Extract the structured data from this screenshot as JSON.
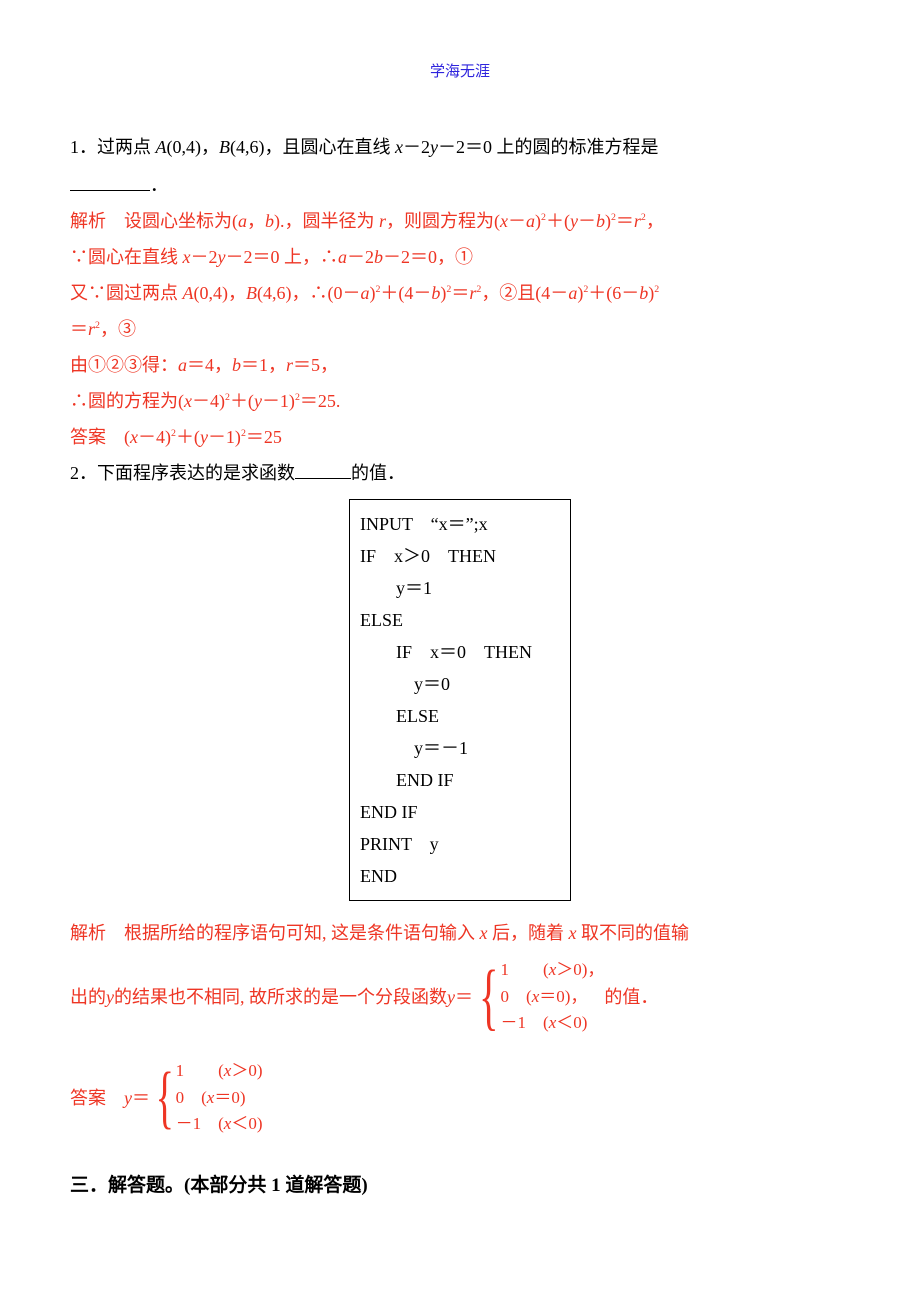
{
  "colors": {
    "text": "#000000",
    "accent_blue": "#2e24dd",
    "answer_red": "#ee3524",
    "background": "#ffffff",
    "border": "#000000"
  },
  "typography": {
    "body_font": "Microsoft YaHei / SimSun",
    "body_size_pt": 14,
    "header_size_pt": 11,
    "code_font": "Times New Roman",
    "line_height": 2.0
  },
  "header": {
    "text": "学海无涯"
  },
  "q1": {
    "line1_a": "1．过两点 ",
    "line1_b": "(0,4)，",
    "line1_c": "(4,6)，且圆心在直线 ",
    "line1_d": "－2",
    "line1_e": "－2＝0 上的圆的标准方程是",
    "blank_suffix": "．",
    "sol_label": "解析",
    "sol1_a": "　设圆心坐标为(",
    "sol1_b": "，",
    "sol1_c": ").，圆半径为 ",
    "sol1_d": "，则圆方程为(",
    "sol1_e": "－",
    "sol1_f": ")",
    "sol1_g": "＋(",
    "sol1_h": "－",
    "sol1_i": ")",
    "sol1_j": "＝",
    "sol1_k": "，",
    "sol2_a": "∵圆心在直线 ",
    "sol2_b": "－2",
    "sol2_c": "－2＝0 上，∴",
    "sol2_d": "－2",
    "sol2_e": "－2＝0，①",
    "sol3_a": "又∵圆过两点 ",
    "sol3_b": "(0,4)，",
    "sol3_c": "(4,6)，∴(0－",
    "sol3_d": ")",
    "sol3_e": "＋(4－",
    "sol3_f": ")",
    "sol3_g": "＝",
    "sol3_h": "，②且(4－",
    "sol3_i": ")",
    "sol3_j": "＋(6－",
    "sol3_k": ")",
    "sol4_a": "＝",
    "sol4_b": "，③",
    "sol5_a": "由①②③得：",
    "sol5_b": "＝4，",
    "sol5_c": "＝1，",
    "sol5_d": "＝5，",
    "sol6_a": "∴圆的方程为(",
    "sol6_b": "－4)",
    "sol6_c": "＋(",
    "sol6_d": "－1)",
    "sol6_e": "＝25.",
    "ans_label": "答案",
    "ans_a": "　(",
    "ans_b": "－4)",
    "ans_c": "＋(",
    "ans_d": "－1)",
    "ans_e": "＝25"
  },
  "q2": {
    "line1_a": "2．下面程序表达的是求函数",
    "line1_b": "的值．",
    "code": {
      "l1": "INPUT　“x＝”;x",
      "l2": "IF　x＞0　THEN",
      "l3": "　　y＝1",
      "l4": "ELSE",
      "l5": "　　IF　x＝0　THEN",
      "l6": "　　　y＝0",
      "l7": "　　ELSE",
      "l8": "　　　y＝－1",
      "l9": "　　END IF",
      "l10": "END IF",
      "l11": "PRINT　y",
      "l12": "END"
    },
    "sol_label": "解析",
    "sol1": "　根据所给的程序语句可知, 这是条件语句输入",
    "sol1b": "后，随着",
    "sol1c": "取不同的值输",
    "sol2a": "出的",
    "sol2b": "的结果也不相同, 故所求的是一个分段函数",
    "sol2c": "＝",
    "sol2_tail": "的值．",
    "pw1": {
      "l1a": "1　　(",
      "l1b": "＞0)，",
      "l2a": "0　(",
      "l2b": "＝0)，",
      "l3a": "－1　(",
      "l3b": "＜0)"
    },
    "ans_label": "答案",
    "ans_pre": "　",
    "ans_y": "＝",
    "pw2": {
      "l1a": "1　　(",
      "l1b": "＞0)",
      "l2a": "0　(",
      "l2b": "＝0)",
      "l3a": "－1　(",
      "l3b": "＜0)"
    }
  },
  "section3": {
    "title": "三．解答题。(本部分共 1 道解答题)"
  }
}
